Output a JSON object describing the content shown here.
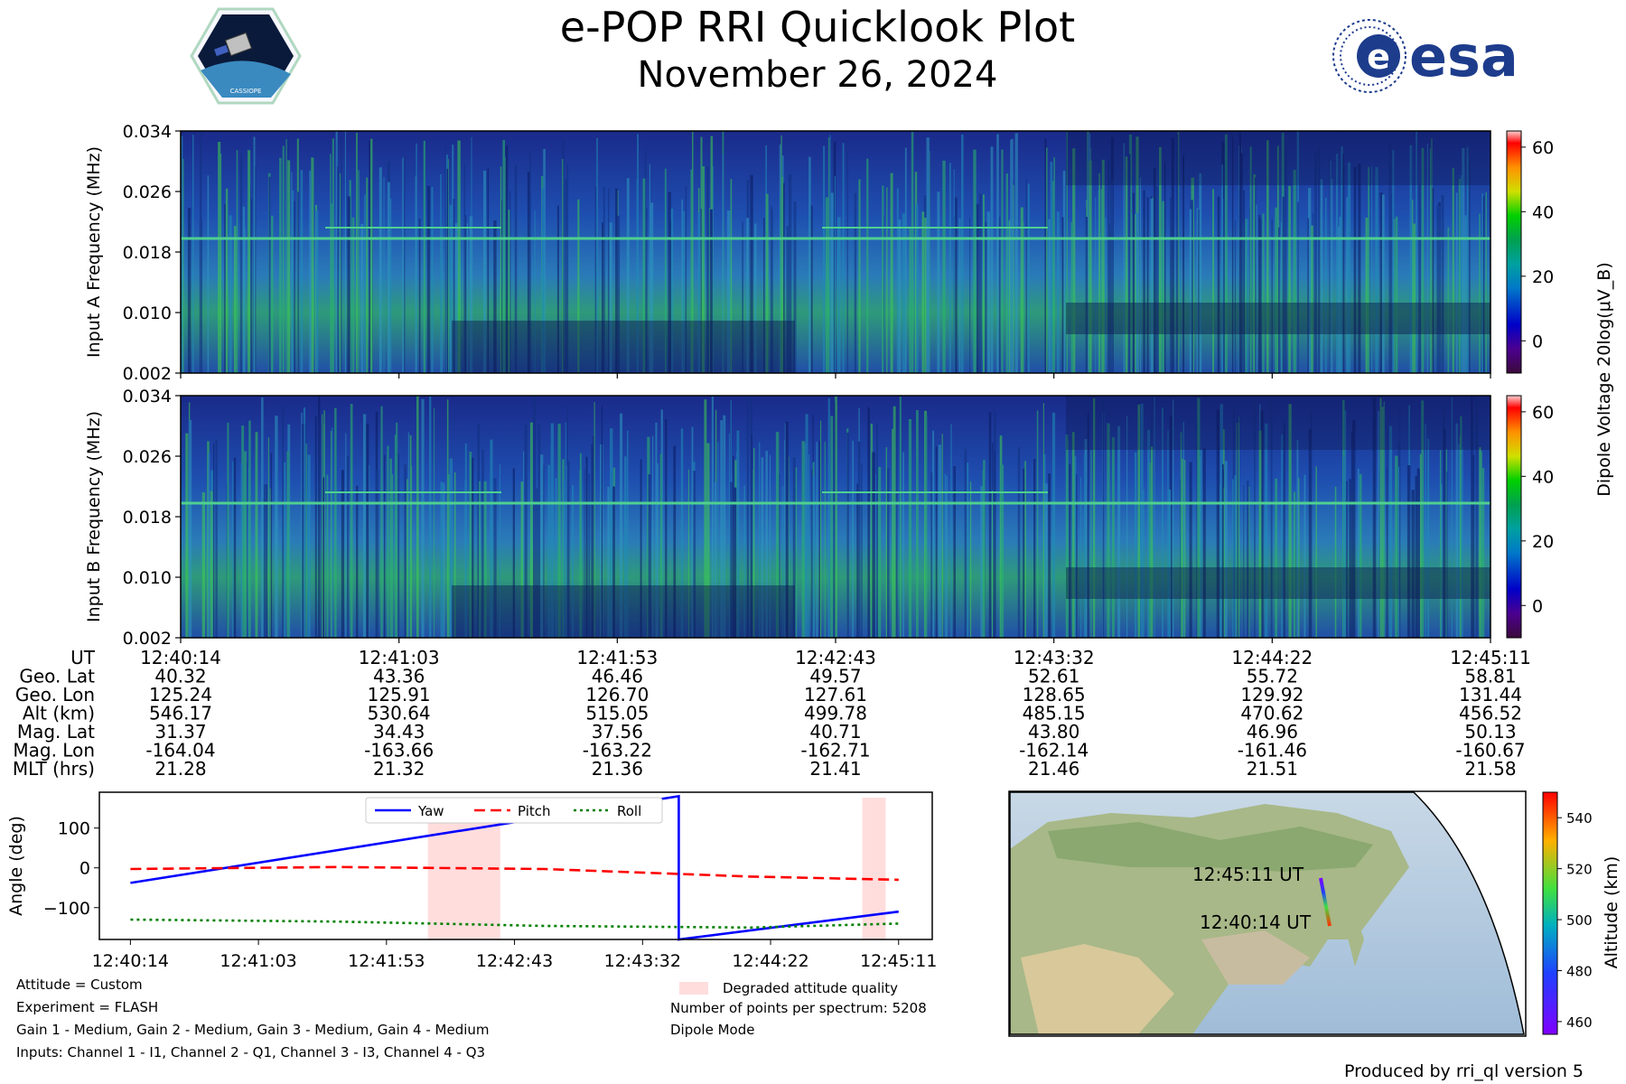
{
  "title": "e-POP RRI Quicklook Plot",
  "subtitle": "November 26, 2024",
  "logos": {
    "left": "CASSIOPE",
    "right": "esa"
  },
  "colors": {
    "yaw": "#0000ff",
    "pitch": "#ff0000",
    "roll": "#008000",
    "degraded": "#ffdddd"
  },
  "spectrogram": {
    "panels": [
      {
        "ylabel": "Input A Frequency (MHz)"
      },
      {
        "ylabel": "Input B Frequency (MHz)"
      }
    ],
    "yticks": [
      "0.002",
      "0.010",
      "0.018",
      "0.026",
      "0.034"
    ],
    "colorbar": {
      "label": "Dipole Voltage 20log(μV_B)",
      "ticks": [
        "0",
        "20",
        "40",
        "60"
      ],
      "range": [
        -10,
        65
      ]
    }
  },
  "ephemeris": {
    "labels": [
      "UT",
      "Geo. Lat",
      "Geo. Lon",
      "Alt (km)",
      "Mag. Lat",
      "Mag. Lon",
      "MLT (hrs)"
    ],
    "columns": [
      [
        "12:40:14",
        "40.32",
        "125.24",
        "546.17",
        "31.37",
        "-164.04",
        "21.28"
      ],
      [
        "12:41:03",
        "43.36",
        "125.91",
        "530.64",
        "34.43",
        "-163.66",
        "21.32"
      ],
      [
        "12:41:53",
        "46.46",
        "126.70",
        "515.05",
        "37.56",
        "-163.22",
        "21.36"
      ],
      [
        "12:42:43",
        "49.57",
        "127.61",
        "499.78",
        "40.71",
        "-162.71",
        "21.41"
      ],
      [
        "12:43:32",
        "52.61",
        "128.65",
        "485.15",
        "43.80",
        "-162.14",
        "21.46"
      ],
      [
        "12:44:22",
        "55.72",
        "129.92",
        "470.62",
        "46.96",
        "-161.46",
        "21.51"
      ],
      [
        "12:45:11",
        "58.81",
        "131.44",
        "456.52",
        "50.13",
        "-160.67",
        "21.58"
      ]
    ]
  },
  "chart_data": {
    "type": "line",
    "ylabel": "Angle (deg)",
    "x_ticks": [
      "12:40:14",
      "12:41:03",
      "12:41:53",
      "12:42:43",
      "12:43:32",
      "12:44:22",
      "12:45:11"
    ],
    "yticks": [
      "−100",
      "0",
      "100"
    ],
    "ylim": [
      -180,
      190
    ],
    "series": [
      {
        "name": "Yaw",
        "style": "solid",
        "points": [
          [
            0,
            -38
          ],
          [
            212,
            180
          ],
          [
            212,
            -180
          ],
          [
            297,
            -110
          ]
        ]
      },
      {
        "name": "Pitch",
        "style": "dashed",
        "points": [
          [
            0,
            -3
          ],
          [
            80,
            2
          ],
          [
            160,
            -3
          ],
          [
            240,
            -22
          ],
          [
            297,
            -30
          ]
        ]
      },
      {
        "name": "Roll",
        "style": "dotted",
        "points": [
          [
            0,
            -130
          ],
          [
            80,
            -135
          ],
          [
            160,
            -146
          ],
          [
            240,
            -150
          ],
          [
            297,
            -140
          ]
        ]
      }
    ],
    "degraded_intervals": [
      [
        115,
        143
      ],
      [
        283,
        292
      ]
    ],
    "legend": [
      "Yaw",
      "Pitch",
      "Roll"
    ],
    "legend_location": "top-center"
  },
  "notes_left": [
    "Attitude = Custom",
    "Experiment = FLASH",
    "Gain 1 - Medium, Gain 2 - Medium, Gain 3 - Medium, Gain 4 - Medium",
    "Inputs: Channel 1 - I1, Channel 2 - Q1, Channel 3 - I3, Channel 4 - Q3"
  ],
  "notes_right": {
    "legend": "Degraded attitude quality",
    "points": "Number of points per spectrum: 5208",
    "mode": "Dipole Mode"
  },
  "map": {
    "start_label": "12:40:14 UT",
    "end_label": "12:45:11 UT",
    "colorbar_label": "Altitude (km)",
    "colorbar_ticks": [
      "460",
      "480",
      "500",
      "520",
      "540"
    ]
  },
  "footer": "Produced by rri_ql version 5"
}
